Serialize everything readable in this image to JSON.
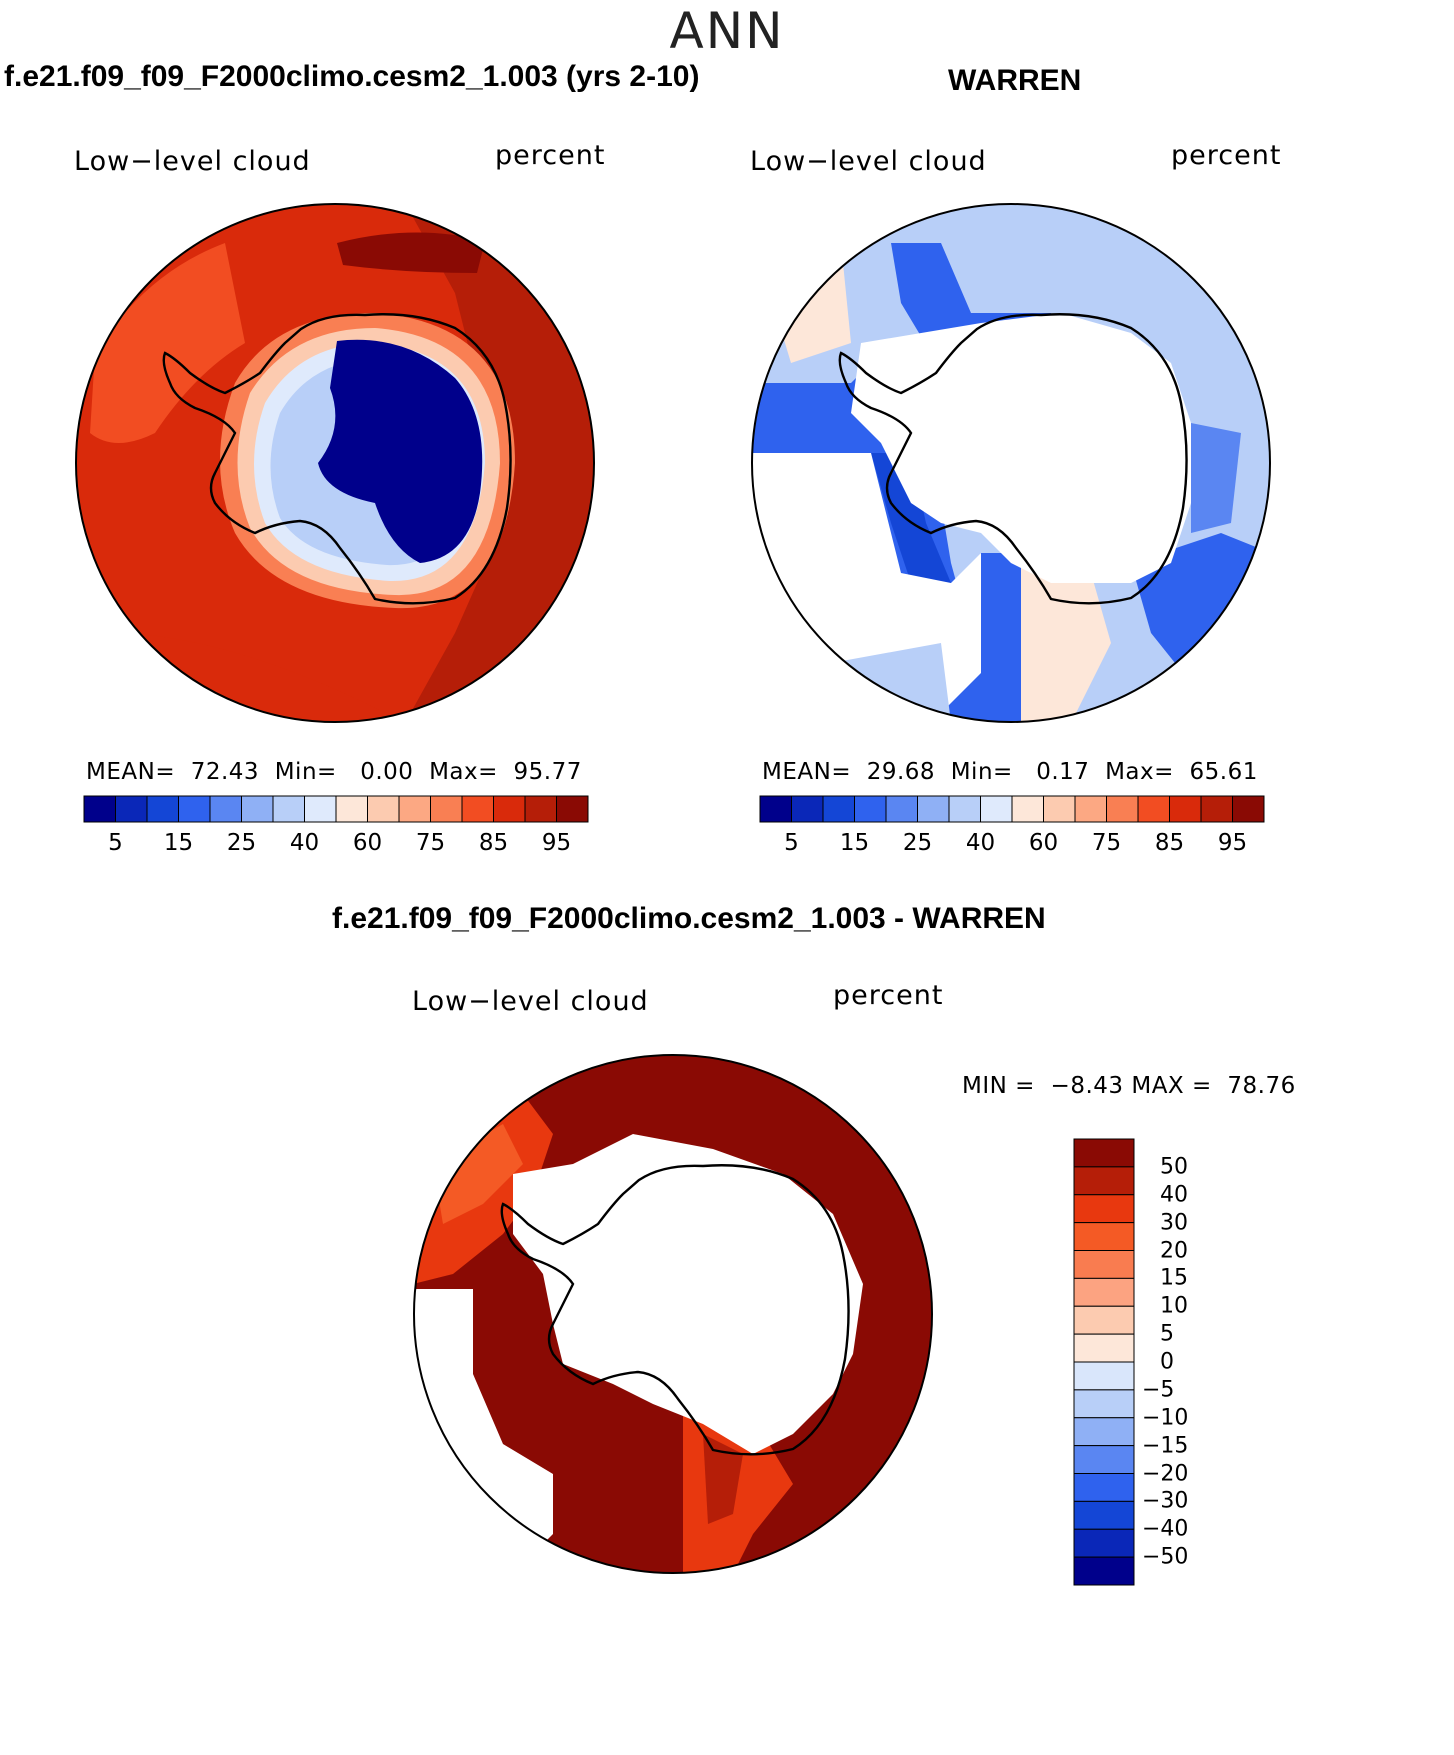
{
  "title": "ANN",
  "panels": [
    {
      "heading": "f.e21.f09_f09_F2000climo.cesm2_1.003 (yrs 2-10)",
      "left_label": "Low−level cloud",
      "right_label": "percent",
      "mean_label": "MEAN=",
      "mean": "72.43",
      "min_label": "Min=",
      "min": "0.00",
      "max_label": "Max=",
      "max": "95.77"
    },
    {
      "heading": "WARREN",
      "left_label": "Low−level cloud",
      "right_label": "percent",
      "mean_label": "MEAN=",
      "mean": "29.68",
      "min_label": "Min=",
      "min": "0.17",
      "max_label": "Max=",
      "max": "65.61"
    },
    {
      "heading": "f.e21.f09_f09_F2000climo.cesm2_1.003 - WARREN",
      "left_label": "Low−level cloud",
      "right_label": "percent",
      "min_label": "MIN =",
      "min": "−8.43",
      "max_label": "MAX =",
      "max": "78.76"
    }
  ],
  "abs_colorbar": {
    "colors": [
      "#00008b",
      "#0a27b8",
      "#1446d6",
      "#2f62ee",
      "#5a86f2",
      "#8fb0f5",
      "#b8cff8",
      "#dfeafc",
      "#fde7d9",
      "#fccbb0",
      "#fca883",
      "#f97f53",
      "#f24d22",
      "#d92a0b",
      "#b51e08",
      "#8a0a04"
    ],
    "ticks": [
      "5",
      "15",
      "25",
      "40",
      "60",
      "75",
      "85",
      "95"
    ]
  },
  "diff_colorbar": {
    "colors": [
      "#8a0a04",
      "#b51e08",
      "#e8380f",
      "#f45a25",
      "#f97c50",
      "#fca381",
      "#fccbb0",
      "#fde7d9",
      "#d9e6fb",
      "#b8cff8",
      "#8fb0f5",
      "#5a86f2",
      "#2f62ee",
      "#1446d6",
      "#0a27b8",
      "#00008b"
    ],
    "ticks": [
      "50",
      "40",
      "30",
      "20",
      "15",
      "10",
      "5",
      "0",
      "−5",
      "−10",
      "−15",
      "−20",
      "−30",
      "−40",
      "−50"
    ]
  }
}
